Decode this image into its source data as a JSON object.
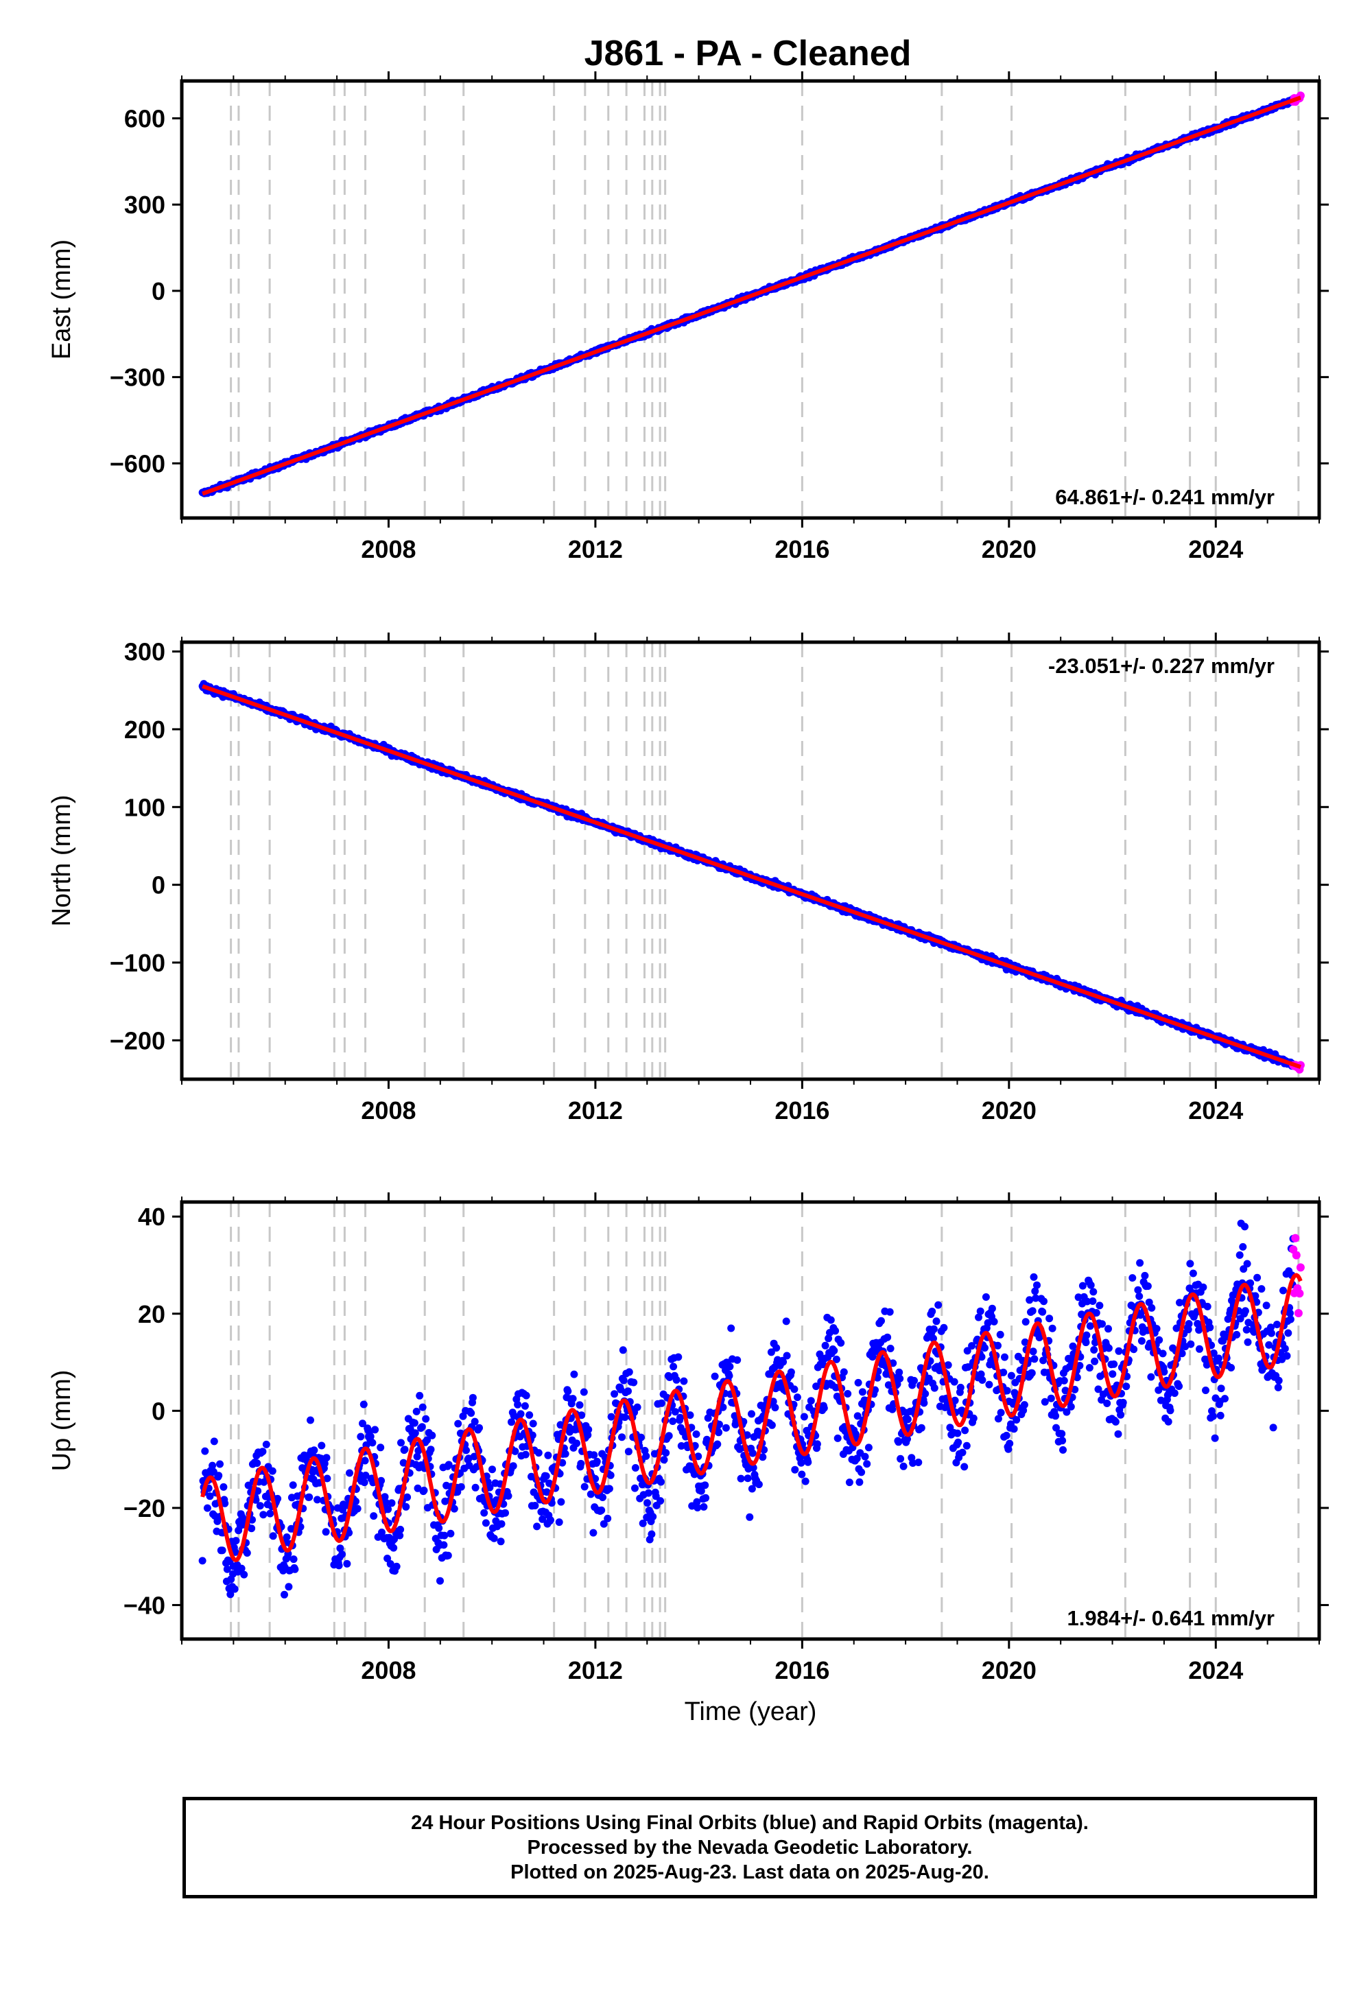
{
  "title": "J861  - PA - Cleaned",
  "colors": {
    "final_points": "#0000ff",
    "rapid_points": "#ff00ff",
    "model_line": "#ff0000",
    "event_lines": "#c8c8c8",
    "frame": "#000000"
  },
  "chart_data": [
    {
      "type": "scatter",
      "name": "east",
      "ylabel": "East (mm)",
      "xlabel": "",
      "xlim": [
        2004.0,
        2026.0
      ],
      "ylim": [
        -790,
        730
      ],
      "yticks": [
        -600,
        -300,
        0,
        300,
        600
      ],
      "xticks": [
        2008,
        2012,
        2016,
        2020,
        2024
      ],
      "xtick_labels": [
        "2008",
        "2012",
        "2016",
        "2020",
        "2024"
      ],
      "ytick_labels": [
        "−600",
        "−300",
        "0",
        "300",
        "600"
      ],
      "rate_label": "64.861+/- 0.241 mm/yr",
      "rate_position": "bottom-right",
      "model": {
        "x0": 2015.0,
        "y0": -18.0,
        "rate": 64.861,
        "amp": 0,
        "noise": 4
      },
      "final_range": [
        2004.4,
        2025.5
      ],
      "rapid_range": [
        2025.5,
        2025.64
      ]
    },
    {
      "type": "scatter",
      "name": "north",
      "ylabel": "North (mm)",
      "xlabel": "",
      "xlim": [
        2004.0,
        2026.0
      ],
      "ylim": [
        -250,
        312
      ],
      "yticks": [
        -200,
        -100,
        0,
        100,
        200,
        300
      ],
      "xticks": [
        2008,
        2012,
        2016,
        2020,
        2024
      ],
      "xtick_labels": [
        "2008",
        "2012",
        "2016",
        "2020",
        "2024"
      ],
      "ytick_labels": [
        "−200",
        "−100",
        "0",
        "100",
        "200",
        "300"
      ],
      "rate_label": "-23.051+/- 0.227 mm/yr",
      "rate_position": "top-right",
      "model": {
        "x0": 2015.0,
        "y0": 11.0,
        "rate": -23.051,
        "amp": 0,
        "noise": 2
      },
      "final_range": [
        2004.4,
        2025.5
      ],
      "rapid_range": [
        2025.5,
        2025.64
      ]
    },
    {
      "type": "scatter",
      "name": "up",
      "ylabel": "Up (mm)",
      "xlabel": "Time (year)",
      "xlim": [
        2004.0,
        2026.0
      ],
      "ylim": [
        -47,
        43
      ],
      "yticks": [
        -40,
        -20,
        0,
        20,
        40
      ],
      "xticks": [
        2008,
        2012,
        2016,
        2020,
        2024
      ],
      "xtick_labels": [
        "2008",
        "2012",
        "2016",
        "2020",
        "2024"
      ],
      "ytick_labels": [
        "−40",
        "−20",
        "0",
        "20",
        "40"
      ],
      "rate_label": "1.984+/- 0.641 mm/yr",
      "rate_position": "bottom-right",
      "model": {
        "x0": 2015.0,
        "y0": -2.0,
        "rate": 1.984,
        "amp": 9,
        "noise": 5
      },
      "final_range": [
        2004.4,
        2025.5
      ],
      "rapid_range": [
        2025.5,
        2025.64
      ]
    }
  ],
  "event_lines": [
    2004.95,
    2005.1,
    2005.7,
    2006.95,
    2007.15,
    2007.55,
    2008.7,
    2009.45,
    2011.2,
    2011.8,
    2012.25,
    2012.6,
    2012.95,
    2013.1,
    2013.25,
    2013.35,
    2016.0,
    2018.7,
    2020.05,
    2022.25,
    2023.5,
    2024.0,
    2025.6
  ],
  "footer": {
    "line1": "24 Hour Positions Using Final Orbits (blue) and Rapid Orbits (magenta).",
    "line2": "Processed by the Nevada Geodetic Laboratory.",
    "line3": "Plotted on 2025-Aug-23. Last data on 2025-Aug-20."
  }
}
